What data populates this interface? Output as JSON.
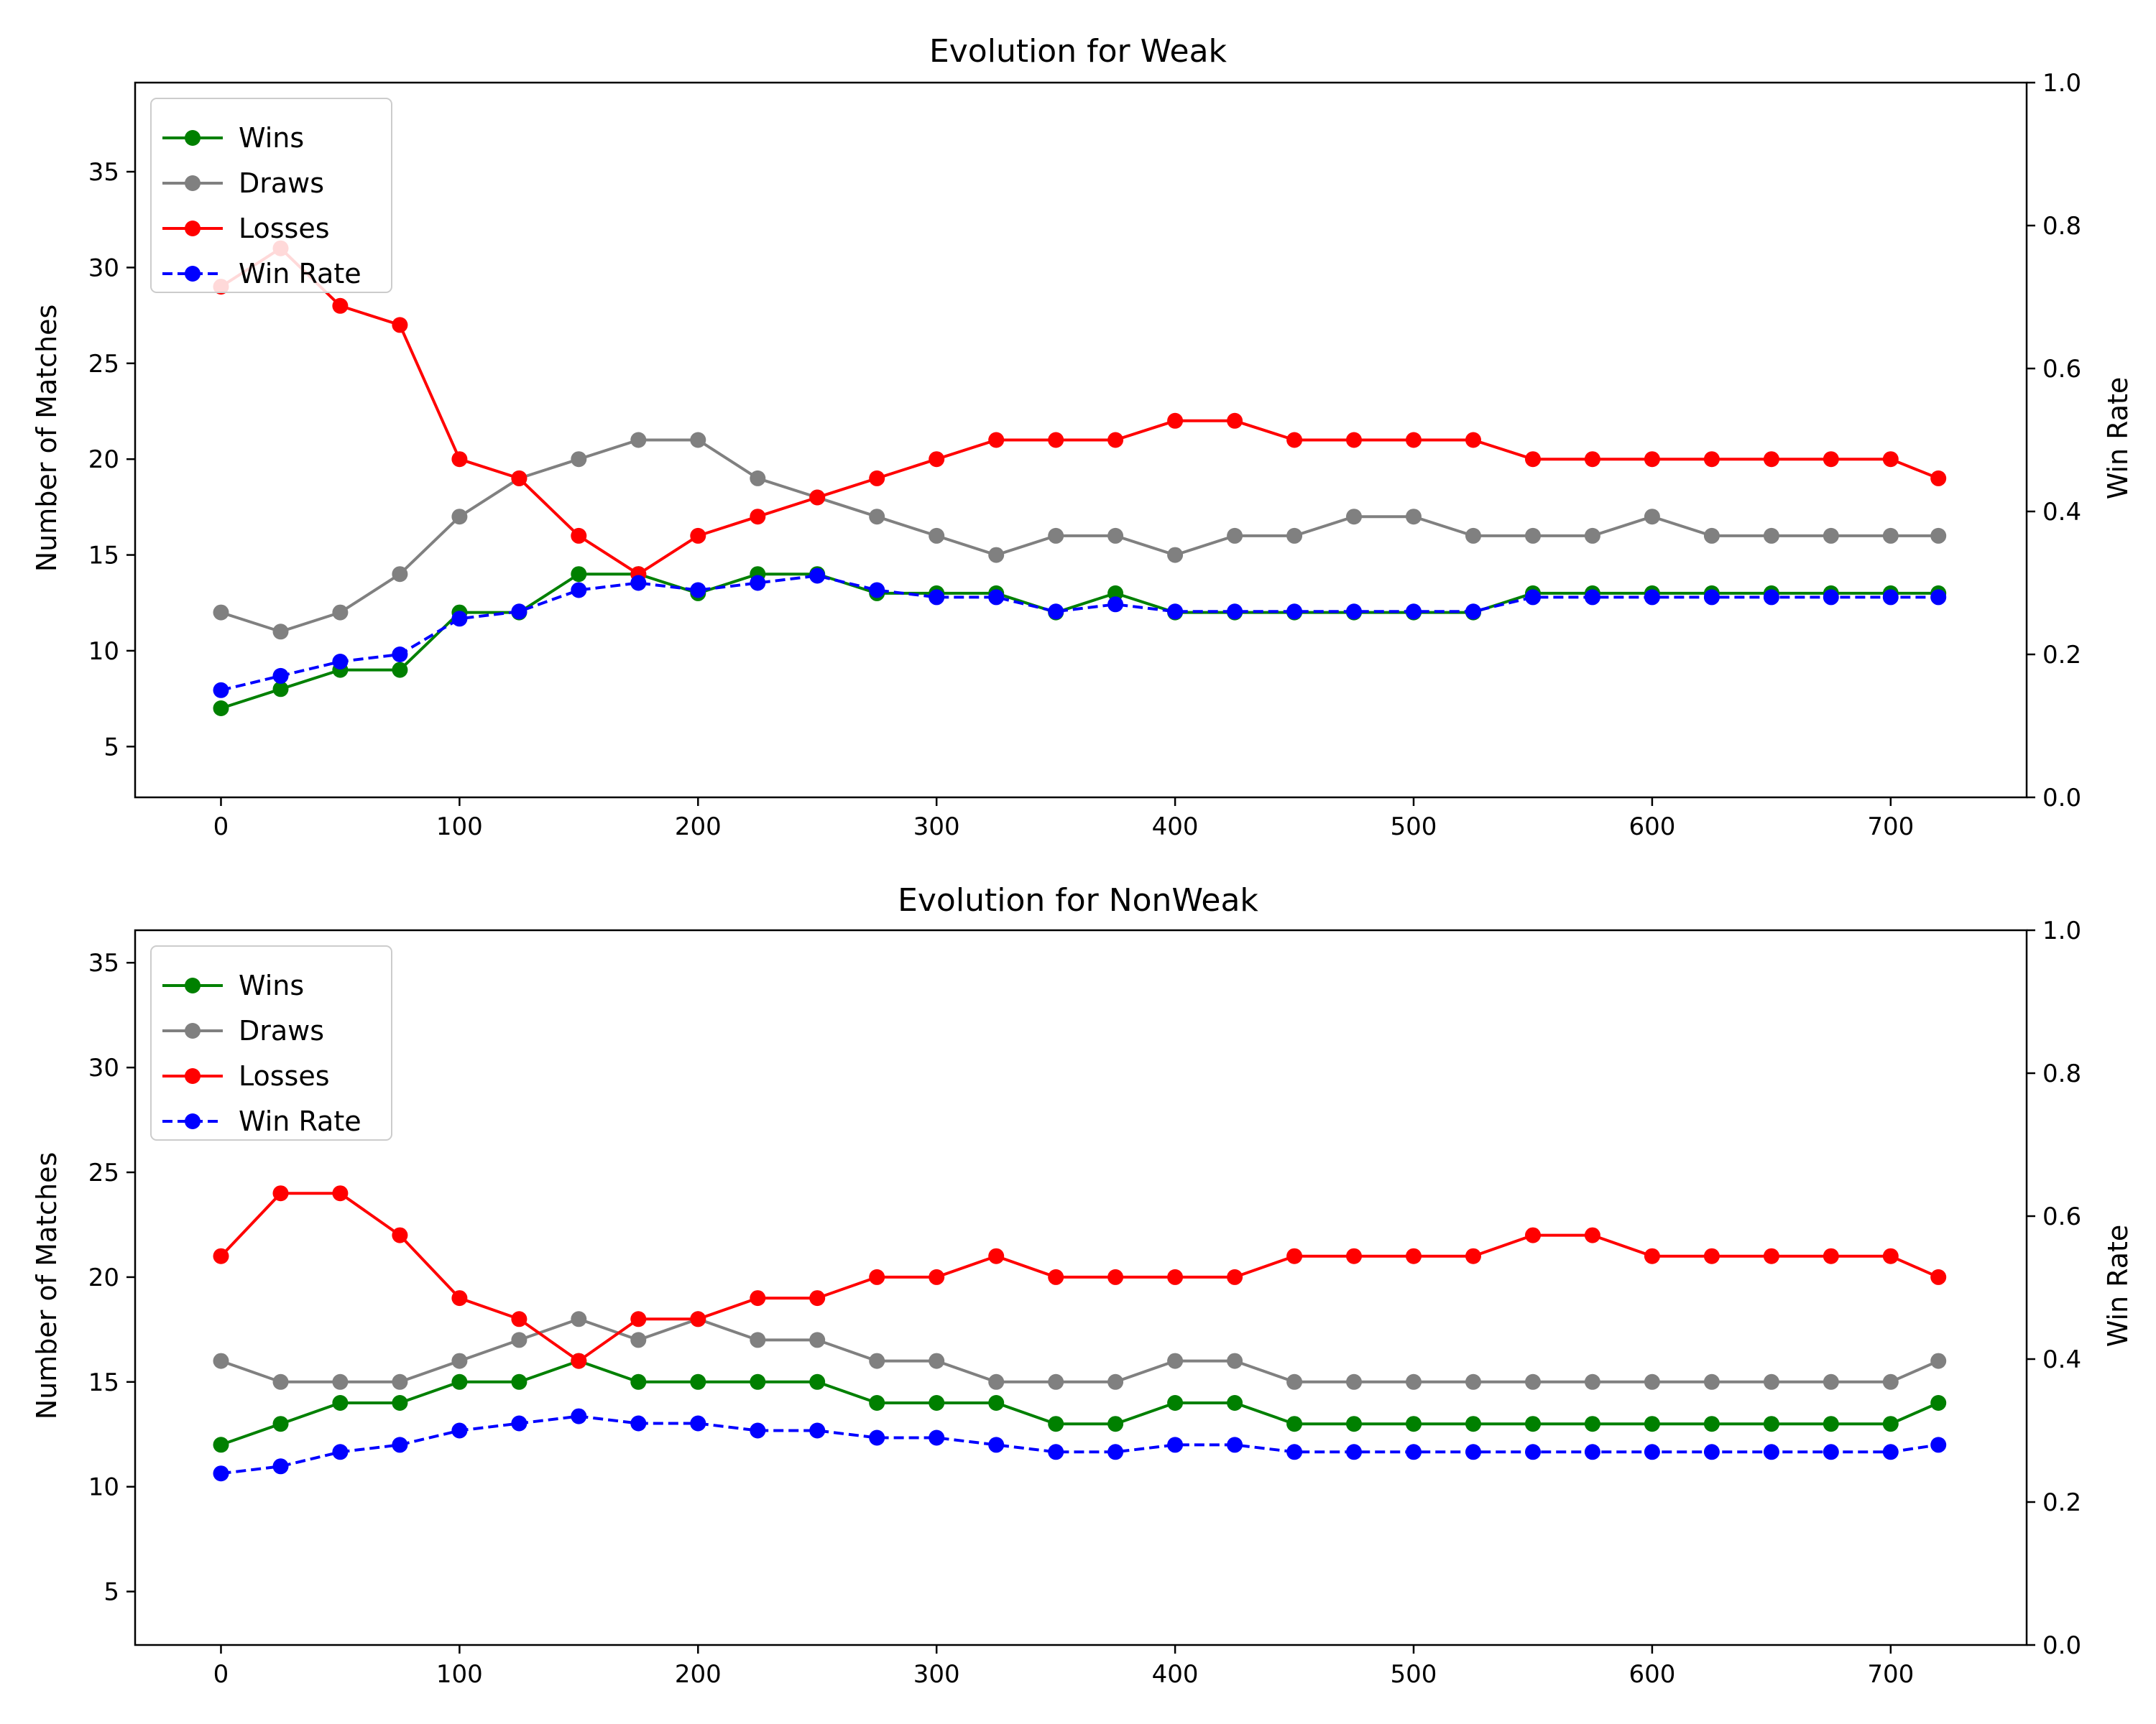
{
  "chart_data": [
    {
      "type": "line",
      "title": "Evolution for Weak",
      "xlabel": "",
      "ylabel": "Number of Matches",
      "y2label": "Win Rate",
      "xlim": [
        -36,
        757
      ],
      "ylim": [
        2.35,
        39.65
      ],
      "y2lim": [
        0.0,
        1.0
      ],
      "xticks": [
        0,
        100,
        200,
        300,
        400,
        500,
        600,
        700
      ],
      "yticks": [
        5,
        10,
        15,
        20,
        25,
        30,
        35
      ],
      "y2ticks": [
        0.0,
        0.2,
        0.4,
        0.6,
        0.8,
        1.0
      ],
      "legend_position": "top-left",
      "series": [
        {
          "name": "Wins",
          "axis": "left",
          "color": "#008000",
          "linestyle": "solid",
          "x": [
            0,
            25,
            50,
            75,
            100,
            125,
            150,
            175,
            200,
            225,
            250,
            275,
            300,
            325,
            350,
            375,
            400,
            425,
            450,
            475,
            500,
            525,
            550,
            575,
            600,
            625,
            650,
            675,
            700,
            720
          ],
          "y": [
            7,
            8,
            9,
            9,
            12,
            12,
            14,
            14,
            13,
            14,
            14,
            13,
            13,
            13,
            12,
            13,
            12,
            12,
            12,
            12,
            12,
            12,
            13,
            13,
            13,
            13,
            13,
            13,
            13,
            13
          ]
        },
        {
          "name": "Draws",
          "axis": "left",
          "color": "#808080",
          "linestyle": "solid",
          "x": [
            0,
            25,
            50,
            75,
            100,
            125,
            150,
            175,
            200,
            225,
            250,
            275,
            300,
            325,
            350,
            375,
            400,
            425,
            450,
            475,
            500,
            525,
            550,
            575,
            600,
            625,
            650,
            675,
            700,
            720
          ],
          "y": [
            12,
            11,
            12,
            14,
            17,
            19,
            20,
            21,
            21,
            19,
            18,
            17,
            16,
            15,
            16,
            16,
            15,
            16,
            16,
            17,
            17,
            16,
            16,
            16,
            17,
            16,
            16,
            16,
            16,
            16
          ]
        },
        {
          "name": "Losses",
          "axis": "left",
          "color": "#ff0000",
          "linestyle": "solid",
          "x": [
            0,
            25,
            50,
            75,
            100,
            125,
            150,
            175,
            200,
            225,
            250,
            275,
            300,
            325,
            350,
            375,
            400,
            425,
            450,
            475,
            500,
            525,
            550,
            575,
            600,
            625,
            650,
            675,
            700,
            720
          ],
          "y": [
            29,
            31,
            28,
            27,
            20,
            19,
            16,
            14,
            16,
            17,
            18,
            19,
            20,
            21,
            21,
            21,
            22,
            22,
            21,
            21,
            21,
            21,
            20,
            20,
            20,
            20,
            20,
            20,
            20,
            19
          ]
        },
        {
          "name": "Win Rate",
          "axis": "right",
          "color": "#0000ff",
          "linestyle": "dashed",
          "x": [
            0,
            25,
            50,
            75,
            100,
            125,
            150,
            175,
            200,
            225,
            250,
            275,
            300,
            325,
            350,
            375,
            400,
            425,
            450,
            475,
            500,
            525,
            550,
            575,
            600,
            625,
            650,
            675,
            700,
            720
          ],
          "y": [
            0.15,
            0.17,
            0.19,
            0.2,
            0.25,
            0.26,
            0.29,
            0.3,
            0.29,
            0.3,
            0.31,
            0.29,
            0.28,
            0.28,
            0.26,
            0.27,
            0.26,
            0.26,
            0.26,
            0.26,
            0.26,
            0.26,
            0.28,
            0.28,
            0.28,
            0.28,
            0.28,
            0.28,
            0.28,
            0.28
          ]
        }
      ]
    },
    {
      "type": "line",
      "title": "Evolution for NonWeak",
      "xlabel": "",
      "ylabel": "Number of Matches",
      "y2label": "Win Rate",
      "xlim": [
        -36,
        757
      ],
      "ylim": [
        2.45,
        36.55
      ],
      "y2lim": [
        0.0,
        1.0
      ],
      "xticks": [
        0,
        100,
        200,
        300,
        400,
        500,
        600,
        700
      ],
      "yticks": [
        5,
        10,
        15,
        20,
        25,
        30,
        35
      ],
      "y2ticks": [
        0.0,
        0.2,
        0.4,
        0.6,
        0.8,
        1.0
      ],
      "legend_position": "top-left",
      "series": [
        {
          "name": "Wins",
          "axis": "left",
          "color": "#008000",
          "linestyle": "solid",
          "x": [
            0,
            25,
            50,
            75,
            100,
            125,
            150,
            175,
            200,
            225,
            250,
            275,
            300,
            325,
            350,
            375,
            400,
            425,
            450,
            475,
            500,
            525,
            550,
            575,
            600,
            625,
            650,
            675,
            700,
            720
          ],
          "y": [
            12,
            13,
            14,
            14,
            15,
            15,
            16,
            15,
            15,
            15,
            15,
            14,
            14,
            14,
            13,
            13,
            14,
            14,
            13,
            13,
            13,
            13,
            13,
            13,
            13,
            13,
            13,
            13,
            13,
            14
          ]
        },
        {
          "name": "Draws",
          "axis": "left",
          "color": "#808080",
          "linestyle": "solid",
          "x": [
            0,
            25,
            50,
            75,
            100,
            125,
            150,
            175,
            200,
            225,
            250,
            275,
            300,
            325,
            350,
            375,
            400,
            425,
            450,
            475,
            500,
            525,
            550,
            575,
            600,
            625,
            650,
            675,
            700,
            720
          ],
          "y": [
            16,
            15,
            15,
            15,
            16,
            17,
            18,
            17,
            18,
            17,
            17,
            16,
            16,
            15,
            15,
            15,
            16,
            16,
            15,
            15,
            15,
            15,
            15,
            15,
            15,
            15,
            15,
            15,
            15,
            16
          ]
        },
        {
          "name": "Losses",
          "axis": "left",
          "color": "#ff0000",
          "linestyle": "solid",
          "x": [
            0,
            25,
            50,
            75,
            100,
            125,
            150,
            175,
            200,
            225,
            250,
            275,
            300,
            325,
            350,
            375,
            400,
            425,
            450,
            475,
            500,
            525,
            550,
            575,
            600,
            625,
            650,
            675,
            700,
            720
          ],
          "y": [
            21,
            24,
            24,
            22,
            19,
            18,
            16,
            18,
            18,
            19,
            19,
            20,
            20,
            21,
            20,
            20,
            20,
            20,
            21,
            21,
            21,
            21,
            22,
            22,
            21,
            21,
            21,
            21,
            21,
            20
          ]
        },
        {
          "name": "Win Rate",
          "axis": "right",
          "color": "#0000ff",
          "linestyle": "dashed",
          "x": [
            0,
            25,
            50,
            75,
            100,
            125,
            150,
            175,
            200,
            225,
            250,
            275,
            300,
            325,
            350,
            375,
            400,
            425,
            450,
            475,
            500,
            525,
            550,
            575,
            600,
            625,
            650,
            675,
            700,
            720
          ],
          "y": [
            0.24,
            0.25,
            0.27,
            0.28,
            0.3,
            0.31,
            0.32,
            0.31,
            0.31,
            0.3,
            0.3,
            0.29,
            0.29,
            0.28,
            0.27,
            0.27,
            0.28,
            0.28,
            0.27,
            0.27,
            0.27,
            0.27,
            0.27,
            0.27,
            0.27,
            0.27,
            0.27,
            0.27,
            0.27,
            0.28
          ]
        }
      ]
    }
  ]
}
